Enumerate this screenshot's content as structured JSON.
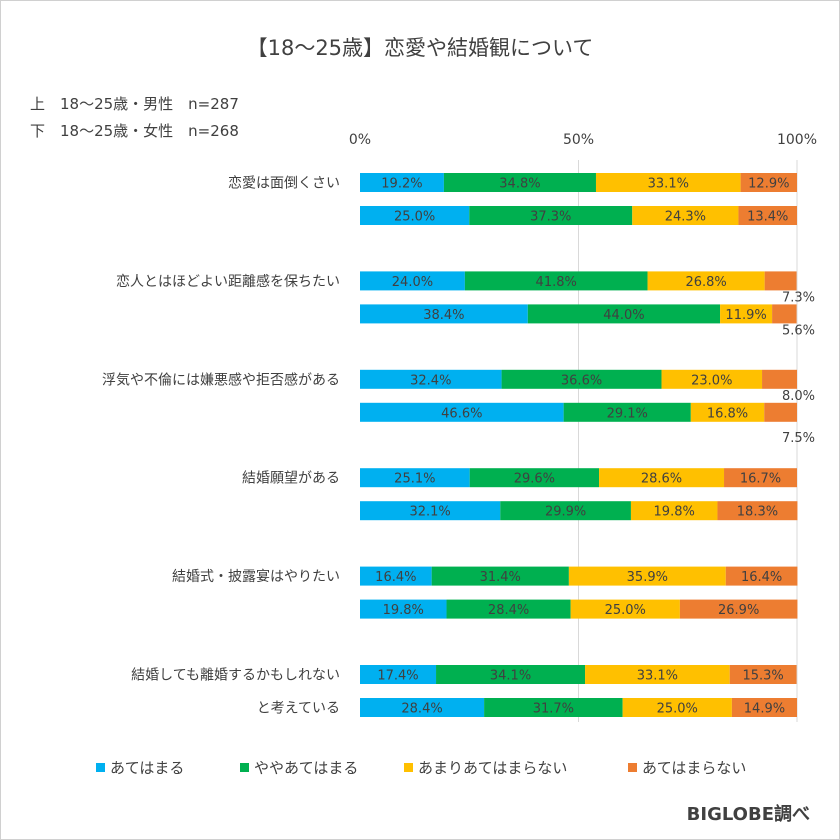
{
  "chart_data": {
    "type": "stacked-horizontal-bar",
    "title": "【18〜25歳】恋愛や結婚観について",
    "notes": [
      "上　18〜25歳・男性　n=287",
      "下　18〜25歳・女性　n=268"
    ],
    "axis": {
      "xlim": [
        0,
        100
      ],
      "ticks": [
        0,
        50,
        100
      ],
      "tick_labels": [
        "0%",
        "50%",
        "100%"
      ],
      "grid": true
    },
    "legend": {
      "position": "bottom",
      "entries": [
        "あてはまる",
        "ややあてはまる",
        "あまりあてはまらない",
        "あてはまらない"
      ]
    },
    "colors": [
      "#00b0f0",
      "#00b050",
      "#ffc000",
      "#ed7d31"
    ],
    "categories": [
      {
        "label": [
          "恋愛は面倒くさい"
        ],
        "bars": [
          {
            "group": "男性",
            "values": [
              19.2,
              34.8,
              33.1,
              12.9
            ],
            "labels": [
              "19.2%",
              "34.8%",
              "33.1%",
              "12.9%"
            ]
          },
          {
            "group": "女性",
            "values": [
              25.0,
              37.3,
              24.3,
              13.4
            ],
            "labels": [
              "25.0%",
              "37.3%",
              "24.3%",
              "13.4%"
            ]
          }
        ]
      },
      {
        "label": [
          "恋人とはほどよい距離感を保ちたい"
        ],
        "bars": [
          {
            "group": "男性",
            "values": [
              24.0,
              41.8,
              26.8,
              7.3
            ],
            "labels": [
              "24.0%",
              "41.8%",
              "26.8%",
              "7.3%"
            ]
          },
          {
            "group": "女性",
            "values": [
              38.4,
              44.0,
              11.9,
              5.6
            ],
            "labels": [
              "38.4%",
              "44.0%",
              "11.9%",
              "5.6%"
            ]
          }
        ]
      },
      {
        "label": [
          "浮気や不倫には嫌悪感や拒否感がある"
        ],
        "bars": [
          {
            "group": "男性",
            "values": [
              32.4,
              36.6,
              23.0,
              8.0
            ],
            "labels": [
              "32.4%",
              "36.6%",
              "23.0%",
              "8.0%"
            ]
          },
          {
            "group": "女性",
            "values": [
              46.6,
              29.1,
              16.8,
              7.5
            ],
            "labels": [
              "46.6%",
              "29.1%",
              "16.8%",
              "7.5%"
            ]
          }
        ]
      },
      {
        "label": [
          "結婚願望がある"
        ],
        "bars": [
          {
            "group": "男性",
            "values": [
              25.1,
              29.6,
              28.6,
              16.7
            ],
            "labels": [
              "25.1%",
              "29.6%",
              "28.6%",
              "16.7%"
            ]
          },
          {
            "group": "女性",
            "values": [
              32.1,
              29.9,
              19.8,
              18.3
            ],
            "labels": [
              "32.1%",
              "29.9%",
              "19.8%",
              "18.3%"
            ]
          }
        ]
      },
      {
        "label": [
          "結婚式・披露宴はやりたい"
        ],
        "bars": [
          {
            "group": "男性",
            "values": [
              16.4,
              31.4,
              35.9,
              16.4
            ],
            "labels": [
              "16.4%",
              "31.4%",
              "35.9%",
              "16.4%"
            ]
          },
          {
            "group": "女性",
            "values": [
              19.8,
              28.4,
              25.0,
              26.9
            ],
            "labels": [
              "19.8%",
              "28.4%",
              "25.0%",
              "26.9%"
            ]
          }
        ]
      },
      {
        "label": [
          "結婚しても離婚するかもしれない",
          "と考えている"
        ],
        "bars": [
          {
            "group": "男性",
            "values": [
              17.4,
              34.1,
              33.1,
              15.3
            ],
            "labels": [
              "17.4%",
              "34.1%",
              "33.1%",
              "15.3%"
            ]
          },
          {
            "group": "女性",
            "values": [
              28.4,
              31.7,
              25.0,
              14.9
            ],
            "labels": [
              "28.4%",
              "31.7%",
              "25.0%",
              "14.9%"
            ]
          }
        ]
      }
    ]
  },
  "footer": {
    "brand": "BIGLOBE調べ"
  }
}
